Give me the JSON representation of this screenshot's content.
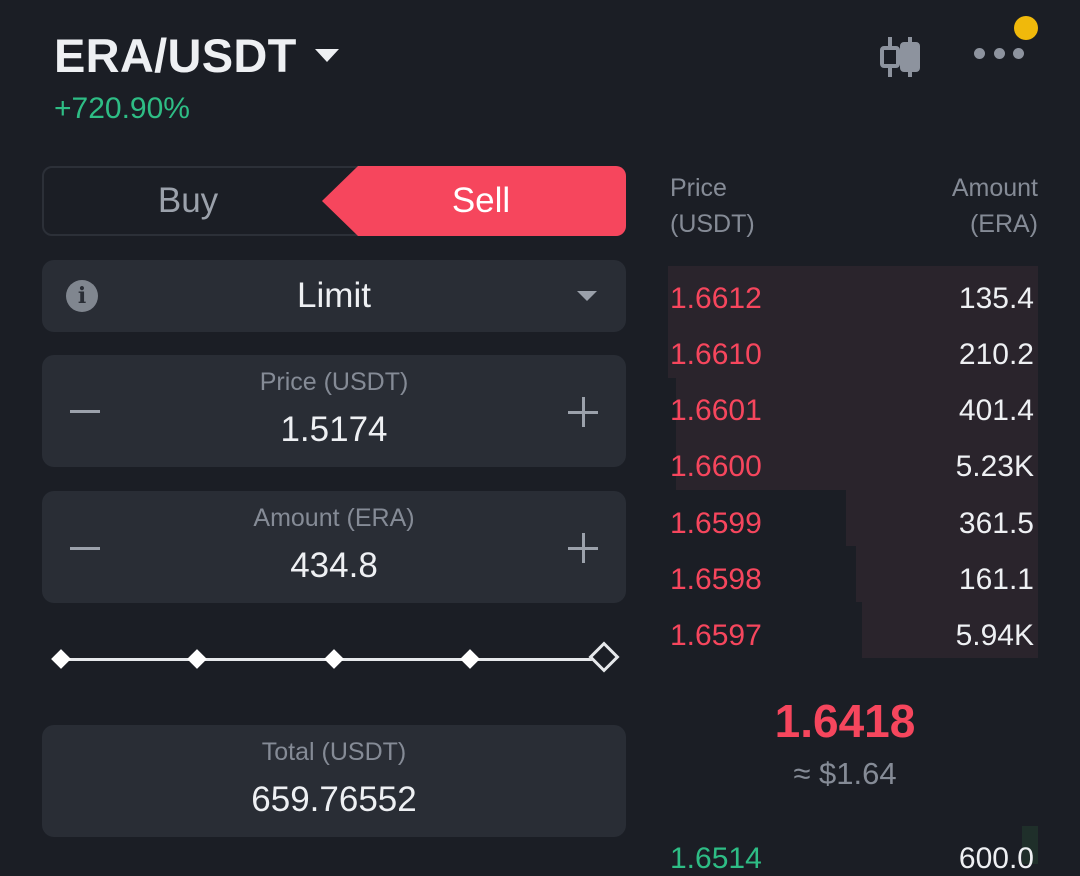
{
  "header": {
    "pair": "ERA/USDT",
    "change_pct": "+720.90%",
    "chart_icon": "candlestick-icon",
    "more_icon": "more-icon",
    "notification_color": "#f0b90b"
  },
  "trade_side": {
    "buy_label": "Buy",
    "sell_label": "Sell",
    "selected": "Sell",
    "sell_color": "#f6465d"
  },
  "order_type": {
    "label": "Limit",
    "info_icon": "info-icon"
  },
  "price_field": {
    "label": "Price (USDT)",
    "value": "1.5174"
  },
  "amount_field": {
    "label": "Amount (ERA)",
    "value": "434.8"
  },
  "slider": {
    "value_pct": 100,
    "stops": 5
  },
  "total_field": {
    "label": "Total (USDT)",
    "value": "659.76552"
  },
  "order_book": {
    "price_header_1": "Price",
    "price_header_2": "(USDT)",
    "amount_header_1": "Amount",
    "amount_header_2": "(ERA)",
    "asks": [
      {
        "price": "1.6612",
        "amount": "135.4"
      },
      {
        "price": "1.6610",
        "amount": "210.2"
      },
      {
        "price": "1.6601",
        "amount": "401.4"
      },
      {
        "price": "1.6600",
        "amount": "5.23K"
      },
      {
        "price": "1.6599",
        "amount": "361.5"
      },
      {
        "price": "1.6598",
        "amount": "161.1"
      },
      {
        "price": "1.6597",
        "amount": "5.94K"
      }
    ],
    "last_price": "1.6418",
    "last_price_usd": "≈ $1.64",
    "bids": [
      {
        "price": "1.6514",
        "amount": "600.0"
      }
    ],
    "ask_color": "#f6465d",
    "bid_color": "#2ebd85"
  }
}
